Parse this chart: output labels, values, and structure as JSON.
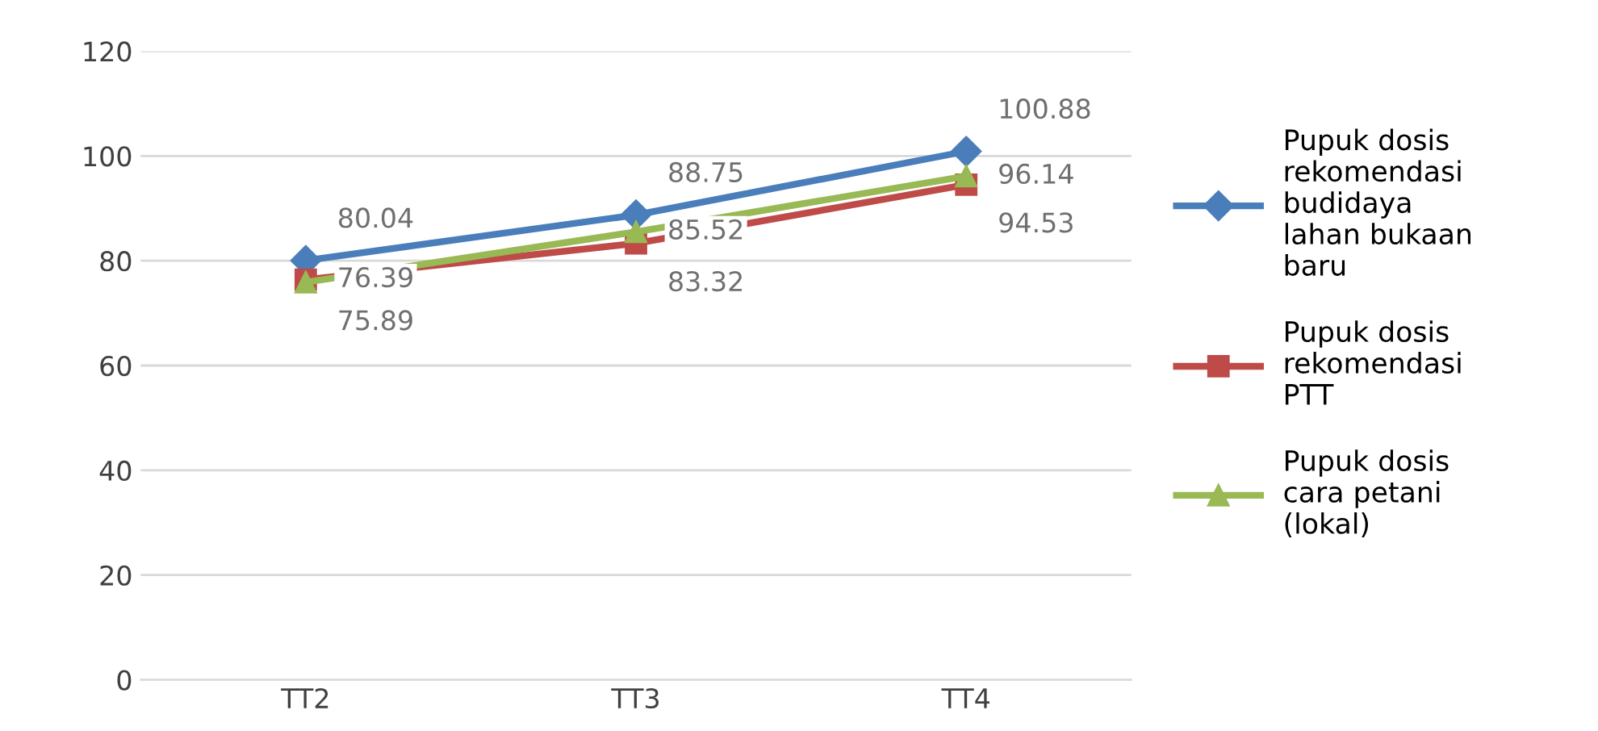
{
  "chart_data": {
    "type": "line",
    "categories": [
      "TT2",
      "TT3",
      "TT4"
    ],
    "series": [
      {
        "name": "Pupuk dosis rekomendasi budidaya lahan bukaan baru",
        "color": "#4a7ebb",
        "values": [
          80.04,
          88.75,
          100.88
        ],
        "marker": "diamond"
      },
      {
        "name": "Pupuk dosis rekomendasi PTT",
        "color": "#be4b48",
        "values": [
          76.39,
          83.32,
          94.53
        ],
        "marker": "square"
      },
      {
        "name": "Pupuk dosis cara petani (lokal)",
        "color": "#98b954",
        "values": [
          75.89,
          85.52,
          96.14
        ],
        "marker": "triangle"
      }
    ],
    "ylim": [
      0,
      120
    ],
    "yticks": [
      0,
      20,
      40,
      60,
      80,
      100,
      120
    ],
    "grid": "y",
    "legend": "right",
    "data_labels": true,
    "line_style": "solid"
  }
}
